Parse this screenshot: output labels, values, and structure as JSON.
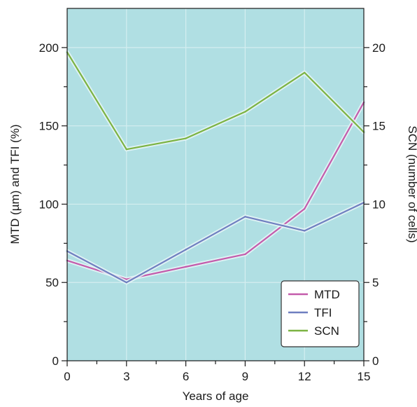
{
  "chart_data": {
    "type": "line",
    "xlabel": "Years of age",
    "ylabel_left": "MTD (µm) and TFI (%)",
    "ylabel_right": "SCN (number of cells)",
    "x": [
      0,
      3,
      6,
      9,
      12,
      15
    ],
    "x_ticks": [
      "0",
      "3",
      "6",
      "9",
      "12",
      "15"
    ],
    "xlim": [
      0,
      15
    ],
    "ylim_left": [
      0,
      225
    ],
    "ylim_right": [
      0,
      22.5
    ],
    "y_ticks_left": [
      "0",
      "50",
      "100",
      "150",
      "200"
    ],
    "y_ticks_right": [
      "0",
      "5",
      "10",
      "15",
      "20"
    ],
    "grid": true,
    "legend_position": "bottom-right",
    "background_color": "#b0dfe3",
    "series": [
      {
        "name": "MTD",
        "axis": "left",
        "color": "#c45bab",
        "values": [
          64,
          52,
          60,
          68,
          97,
          165
        ]
      },
      {
        "name": "TFI",
        "axis": "left",
        "color": "#6f7fc0",
        "values": [
          70,
          50,
          71,
          92,
          83,
          101
        ]
      },
      {
        "name": "SCN",
        "axis": "right",
        "color": "#7cb342",
        "values": [
          19.7,
          13.5,
          14.2,
          15.9,
          18.4,
          14.6
        ]
      }
    ]
  }
}
